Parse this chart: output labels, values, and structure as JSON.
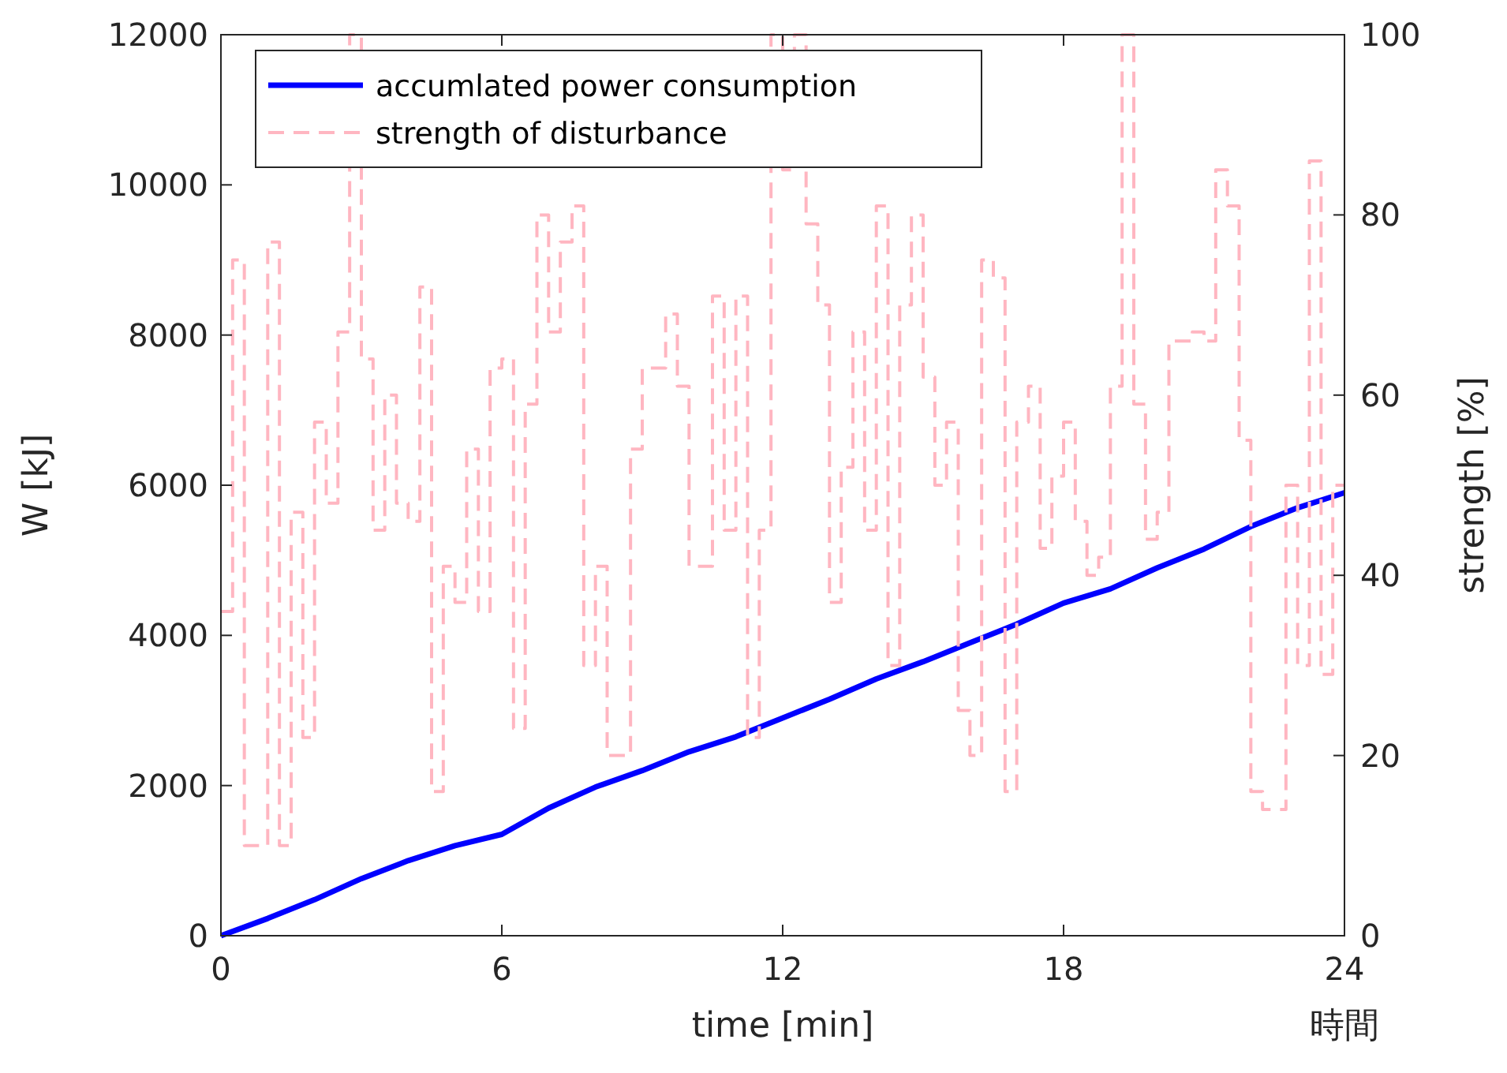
{
  "chart_data": {
    "type": "line",
    "xlabel": "time [min]",
    "ylabel": "W [kJ]",
    "y2label": "strength [%]",
    "annotations": [
      "時間"
    ],
    "xlim": [
      0,
      24
    ],
    "xticks": [
      0,
      6,
      12,
      18,
      24
    ],
    "ylim": [
      0,
      12000
    ],
    "yticks": [
      0,
      2000,
      4000,
      6000,
      8000,
      10000,
      12000
    ],
    "y2lim": [
      0,
      100
    ],
    "y2ticks": [
      0,
      20,
      40,
      60,
      80,
      100
    ],
    "grid": false,
    "legend": "top left",
    "series": [
      {
        "name": "accumlated power consumption",
        "color": "#0000ff",
        "line_style": "solid",
        "x": [
          0,
          1,
          2,
          3,
          4,
          5,
          6,
          7,
          8,
          9,
          10,
          11,
          12,
          13,
          14,
          15,
          16,
          17,
          18,
          19,
          20,
          21,
          22,
          23,
          24
        ],
        "values": [
          0,
          230,
          480,
          760,
          1000,
          1200,
          1350,
          1700,
          1980,
          2200,
          2450,
          2650,
          2900,
          3150,
          3420,
          3650,
          3900,
          4150,
          4430,
          4620,
          4900,
          5150,
          5450,
          5700,
          5900
        ]
      },
      {
        "name": "strength of disturbance",
        "type": "step",
        "axis": "y2",
        "color": "#ffb6c1",
        "line_style": "dashed",
        "x": [
          0,
          0.25,
          0.5,
          0.75,
          1,
          1.25,
          1.5,
          1.75,
          2,
          2.25,
          2.5,
          2.75,
          3,
          3.25,
          3.5,
          3.75,
          4,
          4.25,
          4.5,
          4.75,
          5,
          5.25,
          5.5,
          5.75,
          6,
          6.25,
          6.5,
          6.75,
          7,
          7.25,
          7.5,
          7.75,
          8,
          8.25,
          8.5,
          8.75,
          9,
          9.25,
          9.5,
          9.75,
          10,
          10.25,
          10.5,
          10.75,
          11,
          11.25,
          11.5,
          11.75,
          12,
          12.25,
          12.5,
          12.75,
          13,
          13.25,
          13.5,
          13.75,
          14,
          14.25,
          14.5,
          14.75,
          15,
          15.25,
          15.5,
          15.75,
          16,
          16.25,
          16.5,
          16.75,
          17,
          17.25,
          17.5,
          17.75,
          18,
          18.25,
          18.5,
          18.75,
          19,
          19.25,
          19.5,
          19.75,
          20,
          20.25,
          20.5,
          20.75,
          21,
          21.25,
          21.5,
          21.75,
          22,
          22.25,
          22.5,
          22.75,
          23,
          23.25,
          23.5,
          23.75,
          24
        ],
        "values": [
          36,
          75,
          10,
          10,
          77,
          10,
          47,
          22,
          57,
          48,
          67,
          100,
          64,
          45,
          60,
          48,
          46,
          72,
          16,
          41,
          37,
          54,
          36,
          63,
          64,
          23,
          59,
          80,
          67,
          77,
          81,
          30,
          41,
          20,
          20,
          54,
          63,
          63,
          69,
          61,
          41,
          41,
          71,
          45,
          71,
          22,
          45,
          100,
          85,
          100,
          79,
          70,
          37,
          52,
          67,
          45,
          81,
          30,
          70,
          80,
          62,
          50,
          57,
          25,
          20,
          75,
          73,
          16,
          57,
          61,
          43,
          51,
          57,
          46,
          40,
          42,
          61,
          100,
          59,
          44,
          47,
          66,
          66,
          67,
          66,
          85,
          81,
          55,
          16,
          14,
          14,
          50,
          30,
          86,
          29,
          50,
          50
        ]
      }
    ]
  }
}
